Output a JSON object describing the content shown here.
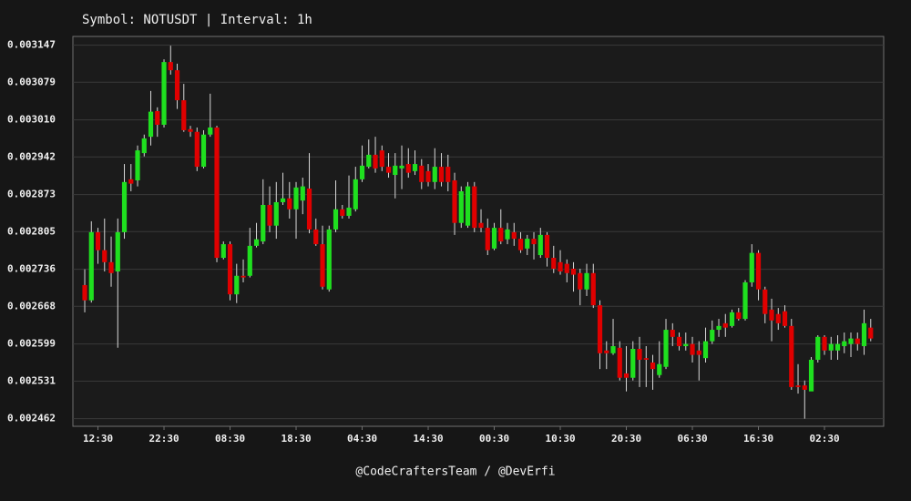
{
  "chart_data": {
    "type": "candlestick",
    "title": "Symbol: NOTUSDT | Interval: 1h",
    "footer": "@CodeCraftersTeam / @DevErfi",
    "categories": [
      null,
      null,
      "12:30",
      null,
      null,
      null,
      null,
      null,
      null,
      null,
      null,
      null,
      "22:30",
      null,
      null,
      null,
      null,
      null,
      null,
      null,
      null,
      null,
      "08:30",
      null,
      null,
      null,
      null,
      null,
      null,
      null,
      null,
      null,
      "18:30",
      null,
      null,
      null,
      null,
      null,
      null,
      null,
      null,
      null,
      "04:30",
      null,
      null,
      null,
      null,
      null,
      null,
      null,
      null,
      null,
      "14:30",
      null,
      null,
      null,
      null,
      null,
      null,
      null,
      null,
      null,
      "00:30",
      null,
      null,
      null,
      null,
      null,
      null,
      null,
      null,
      null,
      "10:30",
      null,
      null,
      null,
      null,
      null,
      null,
      null,
      null,
      null,
      "20:30",
      null,
      null,
      null,
      null,
      null,
      null,
      null,
      null,
      null,
      "06:30",
      null,
      null,
      null,
      null,
      null,
      null,
      null,
      null,
      null,
      "16:30",
      null,
      null,
      null,
      null,
      null,
      null,
      null,
      null,
      null,
      "02:30",
      null,
      null,
      null,
      null,
      null,
      null,
      null
    ],
    "open": [
      0.002707,
      0.002679,
      0.002804,
      0.002771,
      0.002749,
      0.002732,
      0.002804,
      0.002901,
      0.002899,
      0.002949,
      0.002979,
      0.003026,
      0.003001,
      0.003116,
      0.003101,
      0.003046,
      0.002993,
      0.002988,
      0.002924,
      0.002983,
      0.002996,
      0.002757,
      0.002782,
      0.00269,
      0.002724,
      0.002724,
      0.002779,
      0.002787,
      0.002854,
      0.002816,
      0.002859,
      0.002866,
      0.002846,
      0.002862,
      0.002884,
      0.002809,
      0.002782,
      0.002699,
      0.002809,
      0.002846,
      0.002834,
      0.002846,
      0.002901,
      0.002924,
      0.002946,
      0.002954,
      0.002924,
      0.002909,
      0.002921,
      0.002929,
      0.002916,
      0.002926,
      0.002916,
      0.002896,
      0.002924,
      0.002924,
      0.002899,
      0.002821,
      0.002816,
      0.002888,
      0.002821,
      0.002812,
      0.002774,
      0.002812,
      0.002791,
      0.002804,
      0.002792,
      0.002774,
      0.002792,
      0.002762,
      0.002799,
      0.002757,
      0.002749,
      0.002746,
      0.002737,
      0.002729,
      0.002699,
      0.002729,
      0.00267,
      0.002587,
      0.002582,
      0.002592,
      0.002545,
      0.002537,
      0.00259,
      0.002573,
      0.002565,
      0.002542,
      0.002557,
      0.002625,
      0.002612,
      0.002595,
      0.002599,
      0.002587,
      0.002573,
      0.002604,
      0.002625,
      0.002637,
      0.002632,
      0.002657,
      0.002645,
      0.002712,
      0.002766,
      0.002699,
      0.002662,
      0.002654,
      0.002659,
      0.002632,
      0.002523,
      0.002523,
      0.002512,
      0.00257,
      0.002612,
      0.002587,
      0.002587,
      0.002595,
      0.002599,
      0.002609,
      0.002595,
      0.002629
    ],
    "high": [
      0.002736,
      0.002824,
      0.002812,
      0.002829,
      0.002796,
      0.002829,
      0.002929,
      0.002929,
      0.002963,
      0.002983,
      0.003063,
      0.003033,
      0.003121,
      0.003146,
      0.003113,
      0.003076,
      0.002999,
      0.002996,
      0.002991,
      0.003058,
      0.002999,
      0.002787,
      0.002787,
      0.002746,
      0.002754,
      0.002812,
      0.002821,
      0.002901,
      0.002888,
      0.002896,
      0.002913,
      0.002896,
      0.002896,
      0.002904,
      0.002949,
      0.002829,
      0.002816,
      0.002816,
      0.002899,
      0.002854,
      0.002908,
      0.002924,
      0.002963,
      0.002974,
      0.002979,
      0.002963,
      0.002949,
      0.002949,
      0.002963,
      0.002958,
      0.002954,
      0.002938,
      0.002929,
      0.002958,
      0.002949,
      0.002946,
      0.002913,
      0.002888,
      0.002896,
      0.002896,
      0.002846,
      0.002829,
      0.002821,
      0.002846,
      0.002821,
      0.002821,
      0.002804,
      0.002799,
      0.002804,
      0.002812,
      0.002804,
      0.002779,
      0.002771,
      0.002754,
      0.002749,
      0.002737,
      0.002746,
      0.002746,
      0.002679,
      0.002604,
      0.002645,
      0.002604,
      0.002595,
      0.002604,
      0.002612,
      0.002595,
      0.002579,
      0.002604,
      0.002645,
      0.002637,
      0.00262,
      0.00262,
      0.002612,
      0.002604,
      0.002629,
      0.002642,
      0.002645,
      0.002654,
      0.002662,
      0.002665,
      0.002716,
      0.002782,
      0.002771,
      0.002704,
      0.002682,
      0.002665,
      0.00267,
      0.002645,
      0.002562,
      0.002532,
      0.002575,
      0.002615,
      0.002615,
      0.002612,
      0.002615,
      0.00262,
      0.00262,
      0.00262,
      0.002662,
      0.002645
    ],
    "low": [
      0.002657,
      0.002675,
      0.002746,
      0.002732,
      0.002704,
      0.002592,
      0.002792,
      0.002879,
      0.002888,
      0.002943,
      0.002963,
      0.002979,
      0.002996,
      0.003093,
      0.00303,
      0.002988,
      0.002979,
      0.002916,
      0.002921,
      0.002979,
      0.002749,
      0.002754,
      0.002679,
      0.002674,
      0.002712,
      0.002721,
      0.002776,
      0.002782,
      0.002804,
      0.002792,
      0.002854,
      0.002829,
      0.002792,
      0.002837,
      0.002802,
      0.002779,
      0.002699,
      0.002695,
      0.002804,
      0.002829,
      0.002829,
      0.002842,
      0.002896,
      0.002921,
      0.002913,
      0.002916,
      0.002904,
      0.002866,
      0.002883,
      0.002904,
      0.002909,
      0.002883,
      0.002888,
      0.002883,
      0.002888,
      0.002879,
      0.002799,
      0.002812,
      0.002812,
      0.002804,
      0.002804,
      0.002762,
      0.002771,
      0.002782,
      0.002782,
      0.002779,
      0.002766,
      0.002762,
      0.002754,
      0.002757,
      0.002741,
      0.002729,
      0.002726,
      0.002712,
      0.002695,
      0.00267,
      0.002687,
      0.002665,
      0.002553,
      0.002553,
      0.002579,
      0.002532,
      0.002512,
      0.002532,
      0.00252,
      0.00252,
      0.002515,
      0.002537,
      0.002553,
      0.002595,
      0.002587,
      0.002587,
      0.002565,
      0.002532,
      0.002565,
      0.002599,
      0.002612,
      0.002612,
      0.002629,
      0.002642,
      0.002642,
      0.002704,
      0.002679,
      0.002637,
      0.002604,
      0.002625,
      0.002629,
      0.002515,
      0.002508,
      0.002462,
      0.002515,
      0.002565,
      0.002579,
      0.00257,
      0.00257,
      0.002582,
      0.002575,
      0.002587,
      0.002579,
      0.002604
    ],
    "close": [
      0.002679,
      0.002804,
      0.002771,
      0.002749,
      0.002729,
      0.002804,
      0.002896,
      0.002893,
      0.002954,
      0.002976,
      0.003025,
      0.003001,
      0.003116,
      0.003101,
      0.003046,
      0.002991,
      0.002988,
      0.002924,
      0.002983,
      0.002996,
      0.002757,
      0.002782,
      0.00269,
      0.002724,
      0.002721,
      0.002779,
      0.002791,
      0.002854,
      0.002816,
      0.002859,
      0.002866,
      0.002846,
      0.002886,
      0.002888,
      0.002809,
      0.002782,
      0.002704,
      0.002809,
      0.002846,
      0.002834,
      0.002849,
      0.002901,
      0.002926,
      0.002946,
      0.002921,
      0.002924,
      0.002913,
      0.002926,
      0.002926,
      0.002913,
      0.002929,
      0.002896,
      0.002896,
      0.002924,
      0.002896,
      0.002896,
      0.002821,
      0.002879,
      0.002888,
      0.002812,
      0.002812,
      0.002771,
      0.002812,
      0.002787,
      0.002809,
      0.002792,
      0.002771,
      0.002792,
      0.002782,
      0.002799,
      0.002757,
      0.002737,
      0.002732,
      0.002729,
      0.002726,
      0.002699,
      0.002729,
      0.00267,
      0.002582,
      0.002582,
      0.002595,
      0.002537,
      0.002537,
      0.00259,
      0.00257,
      0.00257,
      0.002553,
      0.002562,
      0.002625,
      0.002612,
      0.002595,
      0.002599,
      0.002579,
      0.002579,
      0.002604,
      0.002625,
      0.002632,
      0.002629,
      0.002657,
      0.002645,
      0.002712,
      0.002766,
      0.002699,
      0.002654,
      0.002642,
      0.002637,
      0.002632,
      0.00252,
      0.00252,
      0.002515,
      0.00257,
      0.002612,
      0.002587,
      0.002599,
      0.002599,
      0.002604,
      0.002609,
      0.002599,
      0.002637,
      0.002609
    ],
    "up_color": "#1fe01f",
    "down_color": "#e00000",
    "wick_color": "#d8d8d8",
    "ylim": [
      0.002448,
      0.003163
    ],
    "yticks": [
      0.002462,
      0.002531,
      0.002599,
      0.002668,
      0.002736,
      0.002805,
      0.002873,
      0.002942,
      {
        "value": 0.00301,
        "label": "0.003010"
      },
      0.003079,
      0.003147
    ],
    "grid": true
  }
}
